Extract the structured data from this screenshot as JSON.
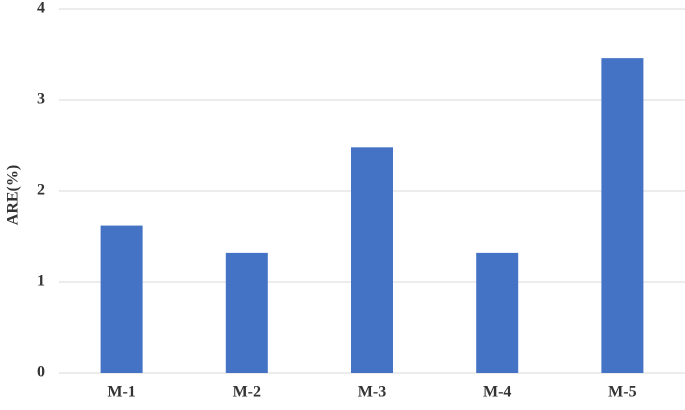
{
  "chart_data": {
    "type": "bar",
    "ylabel": "ARE(%)",
    "categories": [
      "M-1",
      "M-2",
      "M-3",
      "M-4",
      "M-5"
    ],
    "values": [
      1.62,
      1.32,
      2.48,
      1.32,
      3.46
    ],
    "color": "#4472c4",
    "ylim": [
      0,
      4
    ],
    "yticks": [
      0,
      1,
      2,
      3,
      4
    ],
    "grid": true
  }
}
